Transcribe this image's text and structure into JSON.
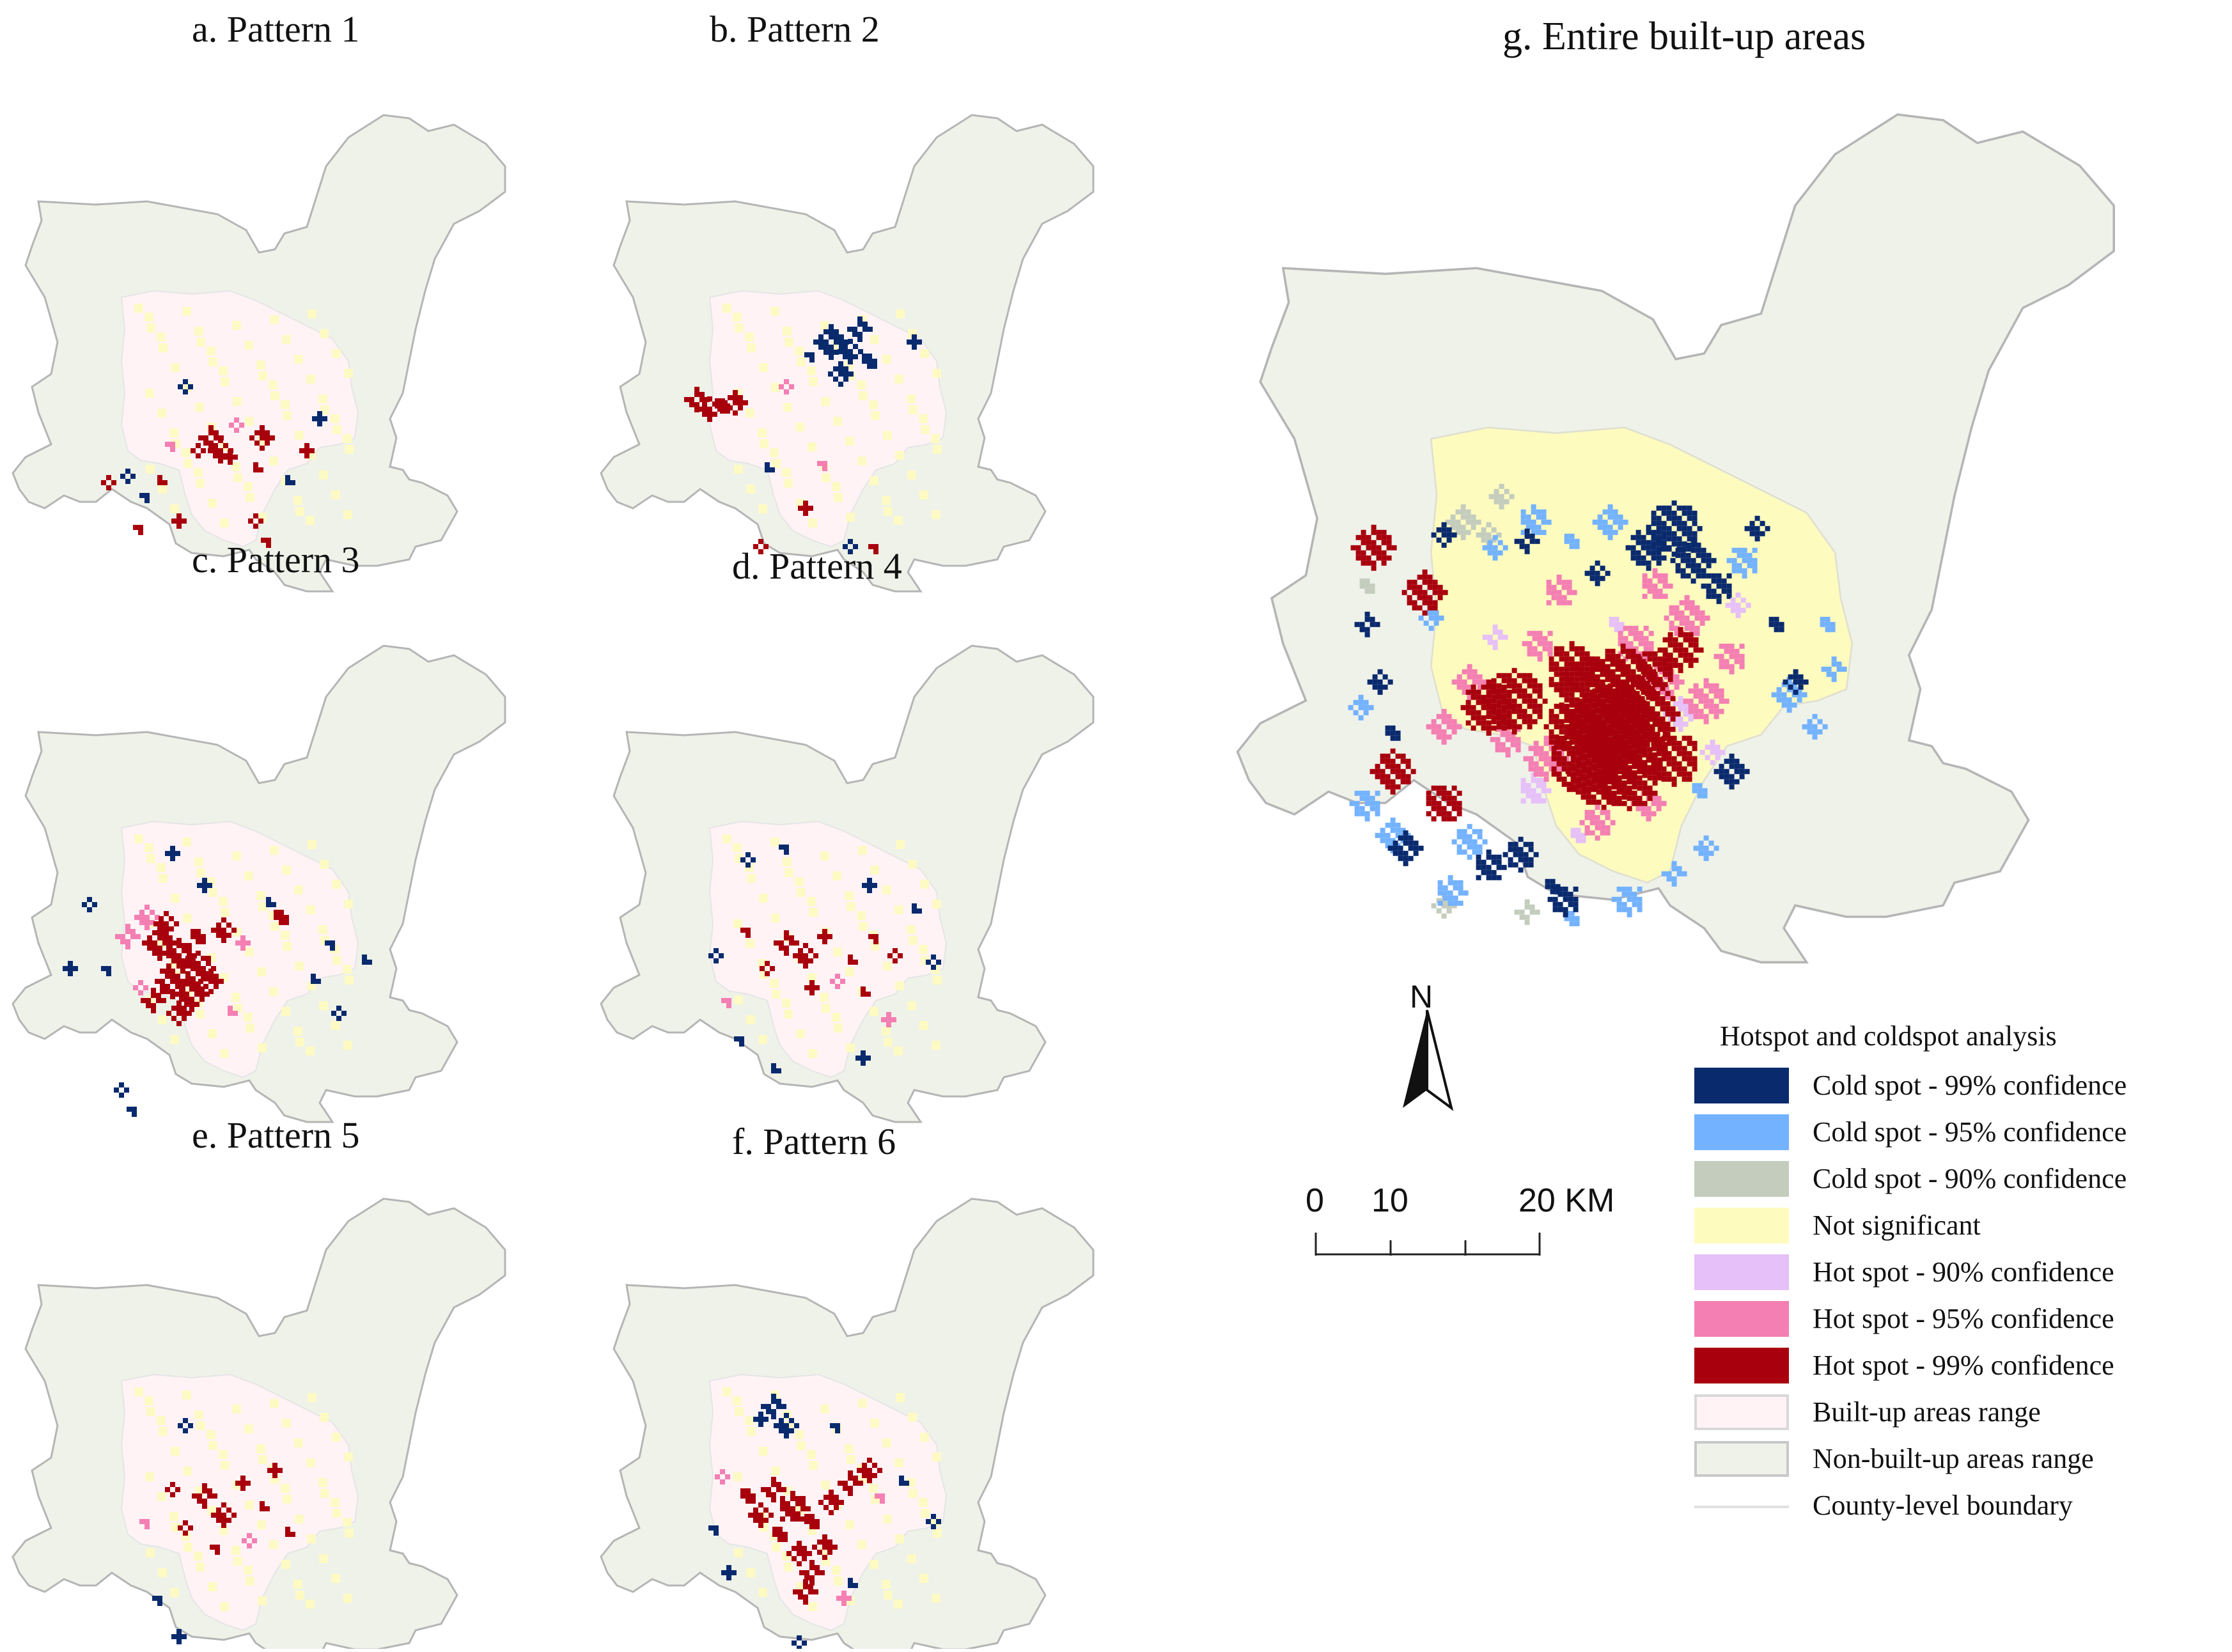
{
  "panels": [
    {
      "id": "a",
      "title": "a. Pattern 1",
      "hot99": [
        [
          -40,
          40,
          9
        ],
        [
          -25,
          60,
          8
        ],
        [
          -10,
          70,
          7
        ],
        [
          40,
          40,
          8
        ],
        [
          30,
          170,
          5
        ],
        [
          50,
          200,
          4
        ],
        [
          110,
          60,
          6
        ],
        [
          -120,
          110,
          6
        ],
        [
          -200,
          110,
          6
        ],
        [
          -150,
          180,
          5
        ],
        [
          -90,
          170,
          4
        ],
        [
          30,
          90,
          6
        ],
        [
          -60,
          60,
          5
        ]
      ],
      "cold": [
        [
          -170,
          100,
          6
        ],
        [
          -140,
          130,
          5
        ],
        [
          130,
          10,
          6
        ],
        [
          80,
          110,
          5
        ],
        [
          -80,
          -40,
          5
        ]
      ],
      "pink": [
        [
          0,
          20,
          6
        ],
        [
          -100,
          50,
          5
        ]
      ]
    },
    {
      "id": "b",
      "title": "b. Pattern  2",
      "hot99": [
        [
          -200,
          -20,
          12
        ],
        [
          -180,
          -5,
          10
        ],
        [
          -160,
          -10,
          9
        ],
        [
          -140,
          -15,
          8
        ],
        [
          -100,
          210,
          5
        ],
        [
          80,
          210,
          6
        ],
        [
          -30,
          150,
          5
        ]
      ],
      "cold": [
        [
          10,
          -110,
          14
        ],
        [
          40,
          -95,
          12
        ],
        [
          70,
          -80,
          10
        ],
        [
          25,
          -60,
          9
        ],
        [
          55,
          -130,
          9
        ],
        [
          -20,
          -90,
          7
        ],
        [
          140,
          -110,
          6
        ],
        [
          -90,
          90,
          5
        ],
        [
          40,
          210,
          5
        ]
      ],
      "pink": [
        [
          -60,
          -40,
          6
        ],
        [
          0,
          80,
          5
        ]
      ]
    },
    {
      "id": "c",
      "title": "c. Pattern  3",
      "hot99": [
        [
          -120,
          0,
          14
        ],
        [
          -90,
          20,
          16
        ],
        [
          -60,
          40,
          14
        ],
        [
          -100,
          60,
          14
        ],
        [
          -70,
          80,
          14
        ],
        [
          -110,
          -30,
          12
        ],
        [
          -60,
          -10,
          12
        ],
        [
          -40,
          60,
          12
        ],
        [
          -130,
          90,
          10
        ],
        [
          -20,
          -20,
          9
        ],
        [
          70,
          -40,
          8
        ],
        [
          -90,
          110,
          10
        ]
      ],
      "cold": [
        [
          -230,
          -60,
          5
        ],
        [
          -200,
          40,
          6
        ],
        [
          -260,
          40,
          5
        ],
        [
          120,
          60,
          6
        ],
        [
          160,
          110,
          5
        ],
        [
          150,
          0,
          5
        ],
        [
          -50,
          -90,
          5
        ],
        [
          50,
          -60,
          5
        ],
        [
          -180,
          230,
          6
        ],
        [
          -160,
          260,
          5
        ],
        [
          -100,
          -140,
          5
        ],
        [
          200,
          30,
          4
        ]
      ],
      "pink": [
        [
          -170,
          -10,
          9
        ],
        [
          -140,
          -40,
          8
        ],
        [
          10,
          0,
          7
        ],
        [
          -10,
          110,
          7
        ],
        [
          -150,
          70,
          7
        ]
      ]
    },
    {
      "id": "d",
      "title": "d. Pattern 4",
      "hot99": [
        [
          -60,
          0,
          8
        ],
        [
          -30,
          20,
          8
        ],
        [
          0,
          -10,
          7
        ],
        [
          40,
          30,
          6
        ],
        [
          -90,
          40,
          6
        ],
        [
          80,
          -10,
          6
        ],
        [
          -20,
          70,
          5
        ],
        [
          60,
          80,
          5
        ],
        [
          110,
          20,
          5
        ],
        [
          -120,
          -20,
          5
        ]
      ],
      "cold": [
        [
          -120,
          -130,
          6
        ],
        [
          -60,
          -150,
          5
        ],
        [
          70,
          -90,
          6
        ],
        [
          140,
          -50,
          5
        ],
        [
          -170,
          20,
          5
        ],
        [
          -130,
          150,
          6
        ],
        [
          60,
          180,
          5
        ],
        [
          -80,
          200,
          5
        ],
        [
          170,
          30,
          5
        ]
      ],
      "pink": [
        [
          20,
          60,
          6
        ],
        [
          -150,
          90,
          5
        ],
        [
          100,
          120,
          5
        ]
      ]
    },
    {
      "id": "e",
      "title": "e. Pattern 5",
      "hot99": [
        [
          -50,
          0,
          9
        ],
        [
          -20,
          30,
          8
        ],
        [
          10,
          -20,
          7
        ],
        [
          40,
          20,
          7
        ],
        [
          -80,
          50,
          6
        ],
        [
          -30,
          80,
          6
        ],
        [
          60,
          -40,
          5
        ],
        [
          80,
          60,
          5
        ],
        [
          -100,
          -10,
          5
        ]
      ],
      "cold": [
        [
          -80,
          -110,
          4
        ],
        [
          -120,
          160,
          4
        ],
        [
          -90,
          220,
          4
        ]
      ],
      "pink": [
        [
          20,
          70,
          5
        ],
        [
          -140,
          40,
          4
        ]
      ]
    },
    {
      "id": "f",
      "title": "f. Pattern 6",
      "hot99": [
        [
          -80,
          -10,
          12
        ],
        [
          -50,
          20,
          14
        ],
        [
          -20,
          40,
          12
        ],
        [
          10,
          10,
          12
        ],
        [
          40,
          -20,
          12
        ],
        [
          70,
          -40,
          10
        ],
        [
          -70,
          60,
          12
        ],
        [
          -40,
          90,
          12
        ],
        [
          -20,
          120,
          12
        ],
        [
          -100,
          30,
          10
        ],
        [
          -120,
          0,
          8
        ],
        [
          0,
          80,
          10
        ],
        [
          -30,
          150,
          10
        ]
      ],
      "cold": [
        [
          -80,
          -140,
          9
        ],
        [
          -60,
          -110,
          8
        ],
        [
          -100,
          -120,
          7
        ],
        [
          120,
          -20,
          6
        ],
        [
          170,
          40,
          6
        ],
        [
          -170,
          50,
          6
        ],
        [
          -150,
          120,
          5
        ],
        [
          40,
          140,
          6
        ],
        [
          -40,
          230,
          5
        ],
        [
          20,
          -110,
          5
        ]
      ],
      "pink": [
        [
          -160,
          -30,
          6
        ],
        [
          90,
          0,
          6
        ],
        [
          30,
          160,
          5
        ]
      ]
    }
  ],
  "main": {
    "title": "g. Entire built-up areas",
    "hot99": [
      [
        -60,
        80,
        40
      ],
      [
        -20,
        60,
        36
      ],
      [
        -40,
        130,
        40
      ],
      [
        -10,
        150,
        38
      ],
      [
        10,
        110,
        34
      ],
      [
        -80,
        180,
        34
      ],
      [
        -50,
        200,
        34
      ],
      [
        -10,
        210,
        32
      ],
      [
        -100,
        130,
        26
      ],
      [
        -190,
        90,
        30
      ],
      [
        -230,
        100,
        26
      ],
      [
        -100,
        40,
        24
      ],
      [
        30,
        40,
        22
      ],
      [
        -330,
        -80,
        18
      ],
      [
        -410,
        -150,
        18
      ],
      [
        -380,
        200,
        20
      ],
      [
        -300,
        250,
        18
      ],
      [
        60,
        180,
        24
      ],
      [
        70,
        10,
        22
      ]
    ],
    "pink": [
      [
        0,
        0,
        18
      ],
      [
        40,
        60,
        18
      ],
      [
        -140,
        180,
        18
      ],
      [
        -200,
        150,
        16
      ],
      [
        20,
        250,
        16
      ],
      [
        80,
        -40,
        18
      ],
      [
        110,
        90,
        18
      ],
      [
        -150,
        0,
        16
      ],
      [
        -260,
        60,
        16
      ],
      [
        30,
        -90,
        14
      ],
      [
        -60,
        280,
        14
      ],
      [
        150,
        20,
        14
      ],
      [
        -300,
        130,
        14
      ],
      [
        -120,
        -80,
        14
      ]
    ],
    "lilac": [
      [
        70,
        110,
        14
      ],
      [
        -160,
        230,
        14
      ],
      [
        -30,
        -30,
        12
      ],
      [
        120,
        170,
        12
      ],
      [
        -220,
        -10,
        12
      ],
      [
        160,
        -60,
        12
      ],
      [
        -90,
        300,
        12
      ]
    ],
    "cold99": [
      [
        60,
        -180,
        24
      ],
      [
        90,
        -130,
        20
      ],
      [
        20,
        -150,
        18
      ],
      [
        130,
        -90,
        16
      ],
      [
        -420,
        -30,
        12
      ],
      [
        -400,
        60,
        12
      ],
      [
        -380,
        140,
        12
      ],
      [
        -300,
        -170,
        12
      ],
      [
        150,
        200,
        14
      ],
      [
        -230,
        350,
        16
      ],
      [
        -180,
        330,
        14
      ],
      [
        -110,
        400,
        14
      ],
      [
        -360,
        320,
        14
      ],
      [
        -60,
        -110,
        12
      ],
      [
        220,
        -30,
        12
      ],
      [
        250,
        60,
        10
      ],
      [
        -170,
        -160,
        12
      ],
      [
        190,
        -180,
        12
      ],
      [
        -130,
        380,
        12
      ]
    ],
    "cold95": [
      [
        -40,
        -190,
        14
      ],
      [
        -160,
        -190,
        14
      ],
      [
        -100,
        -160,
        12
      ],
      [
        170,
        -130,
        14
      ],
      [
        240,
        80,
        14
      ],
      [
        280,
        130,
        12
      ],
      [
        300,
        -30,
        12
      ],
      [
        -420,
        250,
        14
      ],
      [
        -380,
        300,
        14
      ],
      [
        -290,
        390,
        14
      ],
      [
        -100,
        430,
        12
      ],
      [
        -10,
        400,
        14
      ],
      [
        60,
        360,
        12
      ],
      [
        110,
        320,
        12
      ],
      [
        -260,
        310,
        14
      ],
      [
        -430,
        100,
        10
      ],
      [
        310,
        40,
        12
      ],
      [
        -220,
        -150,
        10
      ],
      [
        100,
        230,
        10
      ],
      [
        -320,
        -40,
        10
      ]
    ],
    "cold90": [
      [
        -270,
        -190,
        16
      ],
      [
        -230,
        -170,
        12
      ],
      [
        -420,
        -90,
        12
      ],
      [
        -300,
        410,
        10
      ],
      [
        -170,
        420,
        10
      ],
      [
        -210,
        -230,
        10
      ]
    ]
  },
  "scalebar": {
    "ticks": [
      "0",
      "10",
      "20 KM"
    ]
  },
  "north": {
    "label": "N"
  },
  "legend": {
    "title": "Hotspot and coldspot analysis",
    "items": [
      {
        "label": "Cold spot - 99% confidence",
        "color": "#0a2a6e",
        "border": "#0a2a6e"
      },
      {
        "label": "Cold spot - 95% confidence",
        "color": "#73b2ff",
        "border": "#73b2ff"
      },
      {
        "label": "Cold spot - 90% confidence",
        "color": "#c4cdbd",
        "border": "#c4cdbd"
      },
      {
        "label": "Not significant",
        "color": "#fefbbf",
        "border": "#fefbbf"
      },
      {
        "label": "Hot spot - 90% confidence",
        "color": "#e6c0f8",
        "border": "#e6c0f8"
      },
      {
        "label": "Hot spot - 95% confidence",
        "color": "#f47fb2",
        "border": "#f47fb2"
      },
      {
        "label": "Hot spot - 99% confidence",
        "color": "#a8000d",
        "border": "#a8000d"
      },
      {
        "label": "Built-up areas range",
        "color": "#fff3f6",
        "border": "#d8d8d8"
      },
      {
        "label": "Non-built-up areas range",
        "color": "#eff2e9",
        "border": "#c8c8c8"
      },
      {
        "label": "County-level boundary",
        "color": "line",
        "border": "#e0e0e0"
      }
    ]
  }
}
